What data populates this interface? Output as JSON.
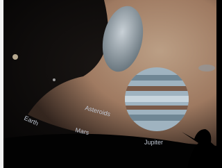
{
  "labels": [
    "Earth",
    "Asteroids",
    "Mars",
    "Jupiter"
  ]
}
